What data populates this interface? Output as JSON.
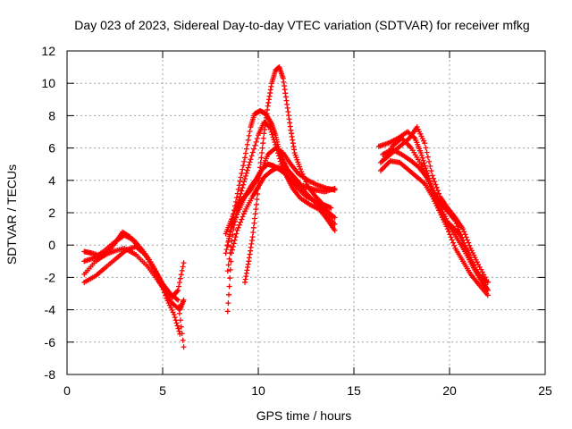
{
  "chart_data": {
    "type": "scatter",
    "title": "Day 023 of 2023, Sidereal Day-to-day VTEC variation (SDTVAR) for receiver mfkg",
    "xlabel": "GPS time / hours",
    "ylabel": "SDTVAR / TECUs",
    "xlim": [
      0,
      25
    ],
    "ylim": [
      -8,
      12
    ],
    "x_ticks": [
      0,
      5,
      10,
      15,
      20,
      25
    ],
    "y_ticks": [
      -8,
      -6,
      -4,
      -2,
      0,
      2,
      4,
      6,
      8,
      10,
      12
    ],
    "x_tick_labels": [
      "0",
      "5",
      "10",
      "15",
      "20",
      "25"
    ],
    "y_tick_labels": [
      "-8",
      "-6",
      "-4",
      "-2",
      "0",
      "2",
      "4",
      "6",
      "8",
      "10",
      "12"
    ],
    "grid": true,
    "marker": "+",
    "color": "#ff0000",
    "series": [
      {
        "name": "segment-1a",
        "x": [
          0.9,
          1.5,
          2.0,
          2.5,
          2.9,
          3.3,
          3.8,
          4.3,
          4.8,
          5.2,
          5.6,
          5.9
        ],
        "y": [
          -1.8,
          -1.0,
          -0.6,
          0.1,
          0.8,
          0.5,
          -0.2,
          -0.9,
          -2.0,
          -3.3,
          -4.3,
          -5.5
        ]
      },
      {
        "name": "segment-1b",
        "x": [
          0.9,
          1.3,
          1.8,
          2.4,
          3.0,
          3.6,
          4.2,
          4.7,
          5.1,
          5.5,
          5.9,
          6.1
        ],
        "y": [
          -0.4,
          -0.5,
          -0.7,
          -0.4,
          -0.2,
          -0.6,
          -1.3,
          -2.1,
          -2.8,
          -3.6,
          -4.0,
          -3.4
        ]
      },
      {
        "name": "segment-1c",
        "x": [
          0.9,
          1.5,
          2.0,
          2.6,
          3.1,
          3.6,
          4.1,
          4.6,
          5.1,
          5.5,
          5.8,
          6.1
        ],
        "y": [
          -2.3,
          -1.9,
          -1.4,
          -0.8,
          -0.3,
          -0.1,
          -0.6,
          -1.6,
          -2.6,
          -3.2,
          -2.8,
          -1.1
        ]
      },
      {
        "name": "segment-1d",
        "x": [
          0.9,
          1.4,
          1.9,
          2.5,
          3.0,
          3.5,
          4.0,
          4.5,
          5.0,
          5.4,
          5.8,
          6.1
        ],
        "y": [
          -1.0,
          -0.8,
          -0.4,
          0.2,
          0.6,
          0.3,
          -0.4,
          -1.3,
          -2.4,
          -3.0,
          -3.4,
          -6.3
        ]
      },
      {
        "name": "segment-2a",
        "x": [
          8.3,
          8.6,
          9.0,
          9.3,
          9.6,
          10.0,
          10.3,
          10.6,
          10.9,
          11.2,
          11.5,
          11.8,
          12.2,
          12.7,
          13.2,
          13.6,
          14.0
        ],
        "y": [
          0.7,
          1.6,
          2.8,
          4.1,
          5.3,
          6.8,
          7.6,
          7.3,
          6.2,
          5.0,
          4.2,
          3.5,
          2.9,
          2.5,
          2.2,
          1.6,
          0.9
        ]
      },
      {
        "name": "segment-2b",
        "x": [
          8.3,
          8.6,
          9.0,
          9.3,
          9.6,
          9.9,
          10.2,
          10.5,
          10.9,
          11.3,
          11.7,
          12.1,
          12.6,
          13.1,
          13.6,
          14.0
        ],
        "y": [
          -0.5,
          1.1,
          2.2,
          3.0,
          3.6,
          4.1,
          4.7,
          5.6,
          6.0,
          5.7,
          5.0,
          4.4,
          4.0,
          3.7,
          3.5,
          3.4
        ]
      },
      {
        "name": "segment-2c",
        "x": [
          8.4,
          8.7,
          9.0,
          9.3,
          9.6,
          9.9,
          10.2,
          10.5,
          10.8,
          11.2,
          11.6,
          12.0,
          12.5,
          13.0,
          13.5,
          14.0
        ],
        "y": [
          -1.6,
          1.0,
          2.6,
          3.0,
          3.4,
          4.0,
          4.7,
          5.0,
          4.9,
          4.6,
          4.2,
          3.6,
          3.0,
          2.7,
          2.2,
          1.7
        ]
      },
      {
        "name": "segment-2d",
        "x": [
          8.4,
          8.6,
          8.9,
          9.3,
          9.7,
          10.0,
          10.3,
          10.7,
          11.0,
          11.3,
          11.6,
          12.0,
          12.5,
          13.0,
          13.5,
          14.0
        ],
        "y": [
          -4.1,
          -0.5,
          0.9,
          2.1,
          3.0,
          3.6,
          4.2,
          4.6,
          4.8,
          4.6,
          4.1,
          3.8,
          3.6,
          3.4,
          3.3,
          3.5
        ]
      },
      {
        "name": "segment-2e",
        "x": [
          8.4,
          8.7,
          9.0,
          9.3,
          9.6,
          9.8,
          10.1,
          10.4,
          10.7,
          10.9,
          11.1,
          11.3,
          11.5,
          11.8,
          12.1,
          12.5,
          13.0,
          13.5,
          14.0
        ],
        "y": [
          0.0,
          1.9,
          3.7,
          5.4,
          7.3,
          8.1,
          8.3,
          8.1,
          7.5,
          6.8,
          5.8,
          5.2,
          4.7,
          4.3,
          3.9,
          3.2,
          2.6,
          2.0,
          1.3
        ]
      },
      {
        "name": "segment-2f",
        "x": [
          9.3,
          9.5,
          9.7,
          9.9,
          10.1,
          10.3,
          10.5,
          10.7,
          10.9,
          11.1,
          11.3,
          11.5,
          11.7,
          11.9,
          12.2,
          12.6,
          13.0,
          13.4,
          13.8
        ],
        "y": [
          -2.3,
          -1.0,
          0.5,
          2.5,
          4.8,
          6.9,
          8.6,
          10.0,
          10.8,
          11.0,
          10.3,
          8.7,
          7.1,
          5.7,
          4.7,
          3.6,
          3.0,
          2.5,
          2.3
        ]
      },
      {
        "name": "segment-3a",
        "x": [
          16.3,
          16.8,
          17.3,
          17.8,
          18.2,
          18.5,
          18.8,
          19.1,
          19.5,
          19.9,
          20.3,
          20.7,
          21.1,
          21.5,
          22.0
        ],
        "y": [
          6.1,
          6.3,
          6.6,
          7.0,
          6.6,
          5.7,
          4.6,
          3.5,
          2.6,
          2.1,
          1.5,
          0.3,
          -0.9,
          -1.8,
          -2.3
        ]
      },
      {
        "name": "segment-3b",
        "x": [
          16.4,
          16.9,
          17.4,
          17.9,
          18.3,
          18.7,
          19.1,
          19.5,
          19.9,
          20.3,
          20.7,
          21.1,
          21.5,
          22.0
        ],
        "y": [
          5.1,
          5.6,
          6.1,
          6.6,
          7.3,
          6.3,
          4.3,
          3.0,
          2.3,
          1.7,
          1.0,
          -0.2,
          -1.2,
          -2.3
        ]
      },
      {
        "name": "segment-3c",
        "x": [
          16.4,
          16.9,
          17.4,
          17.9,
          18.3,
          18.7,
          19.1,
          19.5,
          19.9,
          20.3,
          20.7,
          21.1,
          21.5,
          22.0
        ],
        "y": [
          4.6,
          5.2,
          5.1,
          4.6,
          4.2,
          3.8,
          3.0,
          2.0,
          1.0,
          -0.2,
          -1.0,
          -1.8,
          -2.4,
          -3.1
        ]
      },
      {
        "name": "segment-3d",
        "x": [
          16.5,
          17.0,
          17.5,
          18.0,
          18.4,
          18.8,
          19.2,
          19.6,
          20.0,
          20.4,
          20.8,
          21.2,
          21.6,
          22.0
        ],
        "y": [
          5.6,
          5.9,
          5.6,
          5.2,
          4.8,
          4.2,
          3.2,
          2.2,
          1.2,
          0.4,
          -0.4,
          -1.3,
          -2.1,
          -2.8
        ]
      },
      {
        "name": "segment-3e",
        "x": [
          16.5,
          17.0,
          17.5,
          18.0,
          18.5,
          18.9,
          19.3,
          19.7,
          20.1,
          20.5,
          20.9,
          21.3,
          21.7,
          22.0
        ],
        "y": [
          5.2,
          6.1,
          6.6,
          6.0,
          5.0,
          4.0,
          2.6,
          1.6,
          1.2,
          0.7,
          -0.3,
          -1.4,
          -2.2,
          -2.8
        ]
      }
    ]
  }
}
